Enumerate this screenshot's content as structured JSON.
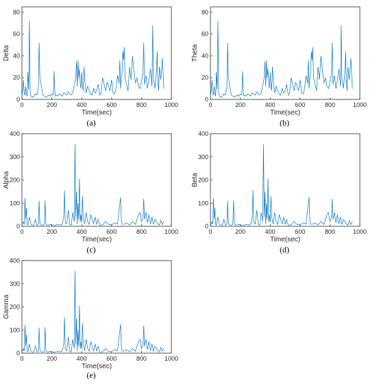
{
  "colors": {
    "series": "#0072BD",
    "axis": "#262626"
  },
  "chart_data": [
    {
      "id": "delta",
      "type": "line",
      "caption": "(a)",
      "xlabel": "Time(sec)",
      "ylabel": "Delta",
      "xlim": [
        0,
        1000
      ],
      "ylim": [
        0,
        85
      ],
      "xticks": [
        0,
        200,
        400,
        600,
        800,
        1000
      ],
      "yticks": [
        0,
        20,
        40,
        60,
        80
      ],
      "x": [
        0,
        5,
        10,
        15,
        20,
        25,
        30,
        35,
        40,
        45,
        50,
        55,
        60,
        70,
        80,
        90,
        100,
        110,
        115,
        120,
        130,
        140,
        150,
        160,
        170,
        180,
        190,
        200,
        210,
        215,
        220,
        225,
        230,
        240,
        250,
        260,
        270,
        280,
        290,
        300,
        310,
        320,
        330,
        340,
        350,
        360,
        365,
        370,
        375,
        380,
        385,
        390,
        395,
        400,
        405,
        410,
        415,
        420,
        430,
        440,
        450,
        460,
        470,
        480,
        490,
        500,
        510,
        520,
        530,
        540,
        550,
        560,
        570,
        580,
        590,
        600,
        610,
        620,
        630,
        640,
        650,
        655,
        660,
        665,
        670,
        675,
        680,
        685,
        690,
        700,
        710,
        720,
        730,
        740,
        750,
        760,
        770,
        780,
        790,
        800,
        810,
        815,
        820,
        830,
        840,
        850,
        860,
        870,
        875,
        880,
        890,
        900,
        905,
        910,
        915,
        920,
        930,
        940,
        950
      ],
      "series": [
        {
          "values": [
            3,
            8,
            18,
            6,
            4,
            12,
            5,
            3,
            25,
            9,
            72,
            6,
            3,
            2,
            3,
            5,
            4,
            10,
            52,
            20,
            12,
            4,
            3,
            2,
            3,
            4,
            3,
            5,
            4,
            26,
            7,
            3,
            4,
            3,
            5,
            4,
            3,
            6,
            5,
            4,
            7,
            5,
            4,
            6,
            13,
            20,
            35,
            12,
            36,
            20,
            28,
            15,
            10,
            25,
            12,
            8,
            30,
            18,
            6,
            12,
            8,
            5,
            4,
            10,
            6,
            8,
            14,
            4,
            6,
            20,
            14,
            8,
            16,
            12,
            8,
            18,
            6,
            5,
            10,
            22,
            15,
            36,
            10,
            20,
            24,
            44,
            36,
            48,
            20,
            14,
            8,
            30,
            18,
            40,
            26,
            15,
            20,
            12,
            10,
            16,
            24,
            52,
            14,
            22,
            10,
            18,
            28,
            12,
            68,
            20,
            10,
            25,
            44,
            15,
            8,
            30,
            18,
            38,
            10
          ]
        }
      ]
    },
    {
      "id": "theta",
      "type": "line",
      "caption": "(b)",
      "xlabel": "Time(sec)",
      "ylabel": "Theta",
      "xlim": [
        0,
        1000
      ],
      "ylim": [
        0,
        85
      ],
      "xticks": [
        0,
        200,
        400,
        600,
        800,
        1000
      ],
      "yticks": [
        0,
        20,
        40,
        60,
        80
      ],
      "x": [
        0,
        5,
        10,
        15,
        20,
        25,
        30,
        35,
        40,
        45,
        50,
        55,
        60,
        70,
        80,
        90,
        100,
        110,
        115,
        120,
        130,
        140,
        150,
        160,
        170,
        180,
        190,
        200,
        210,
        215,
        220,
        225,
        230,
        240,
        250,
        260,
        270,
        280,
        290,
        300,
        310,
        320,
        330,
        340,
        350,
        360,
        365,
        370,
        375,
        380,
        385,
        390,
        395,
        400,
        405,
        410,
        415,
        420,
        430,
        440,
        450,
        460,
        470,
        480,
        490,
        500,
        510,
        520,
        530,
        540,
        550,
        560,
        570,
        580,
        590,
        600,
        610,
        620,
        630,
        640,
        650,
        655,
        660,
        665,
        670,
        675,
        680,
        685,
        690,
        700,
        710,
        720,
        730,
        740,
        750,
        760,
        770,
        780,
        790,
        800,
        810,
        815,
        820,
        830,
        840,
        850,
        860,
        870,
        875,
        880,
        890,
        900,
        905,
        910,
        915,
        920,
        930,
        940,
        950
      ],
      "series": [
        {
          "values": [
            3,
            8,
            18,
            6,
            4,
            12,
            5,
            3,
            25,
            9,
            72,
            6,
            3,
            2,
            3,
            5,
            4,
            10,
            52,
            20,
            12,
            4,
            3,
            2,
            3,
            4,
            3,
            5,
            4,
            26,
            7,
            3,
            4,
            3,
            5,
            4,
            3,
            6,
            5,
            4,
            7,
            5,
            4,
            6,
            13,
            20,
            35,
            12,
            36,
            20,
            28,
            15,
            10,
            25,
            12,
            8,
            30,
            18,
            6,
            12,
            8,
            5,
            4,
            10,
            6,
            8,
            14,
            4,
            6,
            20,
            14,
            8,
            16,
            12,
            8,
            18,
            6,
            5,
            10,
            22,
            15,
            36,
            10,
            20,
            24,
            44,
            36,
            48,
            20,
            14,
            8,
            30,
            18,
            40,
            26,
            15,
            20,
            12,
            10,
            16,
            24,
            52,
            14,
            22,
            10,
            18,
            28,
            12,
            68,
            20,
            10,
            25,
            44,
            15,
            8,
            30,
            18,
            38,
            10
          ]
        }
      ]
    },
    {
      "id": "alpha",
      "type": "line",
      "caption": "(c)",
      "xlabel": "Time(sec)",
      "ylabel": "Alpha",
      "xlim": [
        0,
        1000
      ],
      "ylim": [
        0,
        400
      ],
      "xticks": [
        0,
        200,
        400,
        600,
        800,
        1000
      ],
      "yticks": [
        0,
        100,
        200,
        300,
        400
      ],
      "x": [
        0,
        10,
        15,
        20,
        25,
        30,
        35,
        40,
        50,
        60,
        70,
        80,
        90,
        100,
        110,
        115,
        120,
        130,
        140,
        150,
        155,
        160,
        170,
        180,
        190,
        200,
        220,
        240,
        260,
        270,
        280,
        285,
        290,
        300,
        310,
        320,
        330,
        340,
        350,
        355,
        360,
        365,
        370,
        375,
        380,
        385,
        390,
        395,
        400,
        405,
        410,
        420,
        430,
        440,
        450,
        460,
        470,
        480,
        490,
        500,
        510,
        520,
        540,
        560,
        580,
        600,
        620,
        640,
        660,
        665,
        670,
        680,
        700,
        720,
        740,
        760,
        770,
        780,
        790,
        800,
        810,
        815,
        820,
        830,
        840,
        850,
        860,
        870,
        880,
        890,
        900,
        910,
        920,
        930,
        940,
        950
      ],
      "series": [
        {
          "values": [
            5,
            20,
            8,
            122,
            30,
            80,
            10,
            6,
            40,
            8,
            5,
            6,
            30,
            5,
            8,
            110,
            12,
            6,
            5,
            8,
            112,
            10,
            5,
            6,
            8,
            6,
            5,
            8,
            6,
            10,
            40,
            155,
            15,
            10,
            70,
            8,
            5,
            60,
            20,
            355,
            40,
            150,
            10,
            100,
            30,
            205,
            20,
            50,
            15,
            130,
            40,
            10,
            60,
            20,
            8,
            50,
            30,
            10,
            40,
            8,
            30,
            5,
            6,
            20,
            8,
            6,
            15,
            10,
            125,
            30,
            10,
            8,
            15,
            6,
            20,
            8,
            30,
            50,
            60,
            20,
            40,
            118,
            30,
            60,
            15,
            50,
            10,
            40,
            8,
            30,
            20,
            10,
            5,
            25,
            8,
            20
          ]
        }
      ]
    },
    {
      "id": "beta",
      "type": "line",
      "caption": "(d)",
      "xlabel": "Time(sec)",
      "ylabel": "Beta",
      "xlim": [
        0,
        1000
      ],
      "ylim": [
        0,
        400
      ],
      "xticks": [
        0,
        200,
        400,
        600,
        800,
        1000
      ],
      "yticks": [
        0,
        100,
        200,
        300,
        400
      ],
      "x": [
        0,
        10,
        15,
        20,
        25,
        30,
        35,
        40,
        50,
        60,
        70,
        80,
        90,
        100,
        110,
        115,
        120,
        130,
        140,
        150,
        155,
        160,
        170,
        180,
        190,
        200,
        220,
        240,
        260,
        270,
        280,
        285,
        290,
        300,
        310,
        320,
        330,
        340,
        350,
        355,
        360,
        365,
        370,
        375,
        380,
        385,
        390,
        395,
        400,
        405,
        410,
        420,
        430,
        440,
        450,
        460,
        470,
        480,
        490,
        500,
        510,
        520,
        540,
        560,
        580,
        600,
        620,
        640,
        660,
        665,
        670,
        680,
        700,
        720,
        740,
        760,
        770,
        780,
        790,
        800,
        810,
        815,
        820,
        830,
        840,
        850,
        860,
        870,
        880,
        890,
        900,
        910,
        920,
        930,
        940,
        950
      ],
      "series": [
        {
          "values": [
            5,
            20,
            8,
            122,
            30,
            80,
            10,
            6,
            40,
            8,
            5,
            6,
            30,
            5,
            8,
            110,
            12,
            6,
            5,
            8,
            112,
            10,
            5,
            6,
            8,
            6,
            5,
            8,
            6,
            10,
            40,
            155,
            15,
            10,
            70,
            8,
            5,
            60,
            20,
            355,
            40,
            150,
            10,
            100,
            30,
            205,
            20,
            50,
            15,
            130,
            40,
            10,
            60,
            20,
            8,
            50,
            30,
            10,
            40,
            8,
            30,
            5,
            6,
            20,
            8,
            6,
            15,
            10,
            125,
            30,
            10,
            8,
            15,
            6,
            20,
            8,
            30,
            50,
            60,
            20,
            40,
            118,
            30,
            60,
            15,
            50,
            10,
            40,
            8,
            30,
            20,
            10,
            5,
            25,
            8,
            20
          ]
        }
      ]
    },
    {
      "id": "gamma",
      "type": "line",
      "caption": "(e)",
      "xlabel": "Time(sec)",
      "ylabel": "Gamma",
      "xlim": [
        0,
        1000
      ],
      "ylim": [
        0,
        400
      ],
      "xticks": [
        0,
        200,
        400,
        600,
        800,
        1000
      ],
      "yticks": [
        0,
        100,
        200,
        300,
        400
      ],
      "x": [
        0,
        10,
        15,
        20,
        25,
        30,
        35,
        40,
        50,
        60,
        70,
        80,
        90,
        100,
        110,
        115,
        120,
        130,
        140,
        150,
        155,
        160,
        170,
        180,
        190,
        200,
        220,
        240,
        260,
        270,
        280,
        285,
        290,
        300,
        310,
        320,
        330,
        340,
        350,
        355,
        360,
        365,
        370,
        375,
        380,
        385,
        390,
        395,
        400,
        405,
        410,
        420,
        430,
        440,
        450,
        460,
        470,
        480,
        490,
        500,
        510,
        520,
        540,
        560,
        580,
        600,
        620,
        640,
        660,
        665,
        670,
        680,
        700,
        720,
        740,
        760,
        770,
        780,
        790,
        800,
        810,
        815,
        820,
        830,
        840,
        850,
        860,
        870,
        880,
        890,
        900,
        910,
        920,
        930,
        940,
        950
      ],
      "series": [
        {
          "values": [
            5,
            20,
            8,
            122,
            30,
            80,
            10,
            6,
            40,
            8,
            5,
            6,
            30,
            5,
            8,
            110,
            12,
            6,
            5,
            8,
            112,
            10,
            5,
            6,
            8,
            6,
            5,
            8,
            6,
            10,
            40,
            155,
            15,
            10,
            70,
            8,
            5,
            60,
            20,
            355,
            40,
            150,
            10,
            100,
            30,
            205,
            20,
            50,
            15,
            130,
            40,
            10,
            60,
            20,
            8,
            50,
            30,
            10,
            40,
            8,
            30,
            5,
            6,
            20,
            8,
            6,
            15,
            10,
            125,
            30,
            10,
            8,
            15,
            6,
            20,
            8,
            30,
            50,
            60,
            20,
            40,
            118,
            30,
            60,
            15,
            50,
            10,
            40,
            8,
            30,
            20,
            10,
            5,
            25,
            8,
            20
          ]
        }
      ]
    }
  ]
}
